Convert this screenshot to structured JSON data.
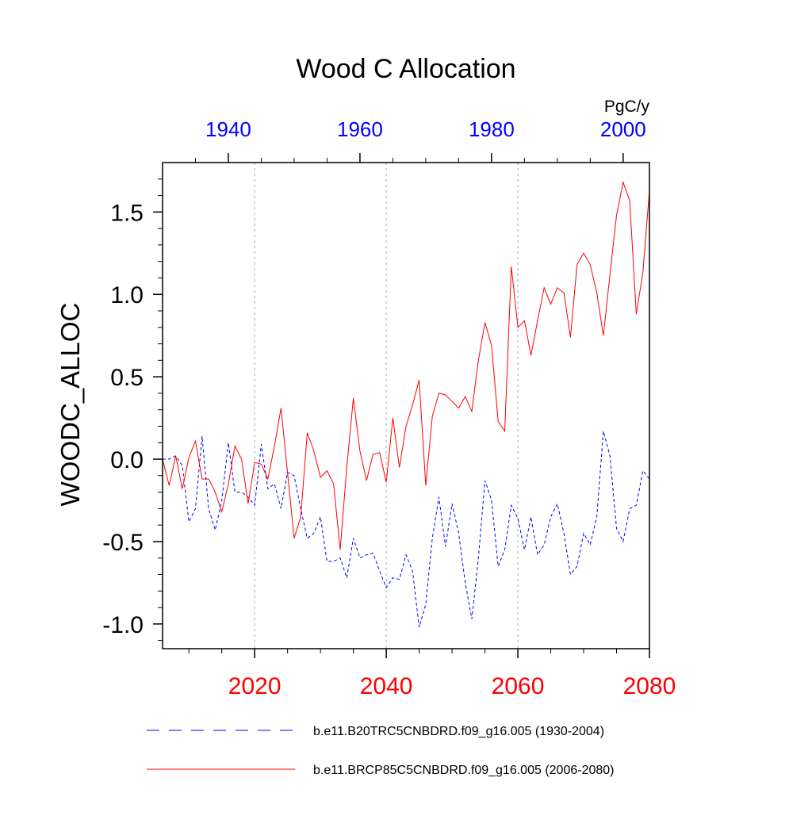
{
  "chart_data": {
    "type": "line",
    "title": "Wood C Allocation",
    "ylabel": "WOODC_ALLOC",
    "units": "PgC/y",
    "ylim": [
      -1.15,
      1.8
    ],
    "yticks": [
      -1.0,
      -0.5,
      0.0,
      0.5,
      1.0,
      1.5
    ],
    "ytick_labels": [
      "-1.0",
      "-0.5",
      "0.0",
      "0.5",
      "1.0",
      "1.5"
    ],
    "bottom_axis": {
      "range": [
        2006,
        2080
      ],
      "ticks": [
        2020,
        2040,
        2060,
        2080
      ],
      "tick_labels": [
        "2020",
        "2040",
        "2060",
        "2080"
      ],
      "color": "#ff0000"
    },
    "top_axis": {
      "range": [
        1930,
        2004
      ],
      "ticks": [
        1940,
        1960,
        1980,
        2000
      ],
      "tick_labels": [
        "1940",
        "1960",
        "1980",
        "2000"
      ],
      "color": "#0000ff"
    },
    "grid": "vertical dotted at bottom-axis ticks",
    "series": [
      {
        "name": "b.e11.B20TRC5CNBDRD.f09_g16.005 (1930-2004)",
        "axis": "top",
        "color": "#0000ff",
        "dash": "dashed",
        "x": [
          1930,
          1931,
          1932,
          1933,
          1934,
          1935,
          1936,
          1937,
          1938,
          1939,
          1940,
          1941,
          1942,
          1943,
          1944,
          1945,
          1946,
          1947,
          1948,
          1949,
          1950,
          1951,
          1952,
          1953,
          1954,
          1955,
          1956,
          1957,
          1958,
          1959,
          1960,
          1961,
          1962,
          1963,
          1964,
          1965,
          1966,
          1967,
          1968,
          1969,
          1970,
          1971,
          1972,
          1973,
          1974,
          1975,
          1976,
          1977,
          1978,
          1979,
          1980,
          1981,
          1982,
          1983,
          1984,
          1985,
          1986,
          1987,
          1988,
          1989,
          1990,
          1991,
          1992,
          1993,
          1994,
          1995,
          1996,
          1997,
          1998,
          1999,
          2000,
          2001,
          2002,
          2003,
          2004
        ],
        "y": [
          0.0,
          0.0,
          0.02,
          -0.04,
          -0.38,
          -0.3,
          0.14,
          -0.3,
          -0.43,
          -0.25,
          0.1,
          -0.2,
          -0.2,
          -0.23,
          -0.28,
          0.09,
          -0.18,
          -0.15,
          -0.3,
          -0.08,
          -0.1,
          -0.3,
          -0.48,
          -0.45,
          -0.35,
          -0.62,
          -0.62,
          -0.6,
          -0.72,
          -0.48,
          -0.6,
          -0.58,
          -0.57,
          -0.68,
          -0.78,
          -0.72,
          -0.73,
          -0.58,
          -0.68,
          -1.02,
          -0.88,
          -0.48,
          -0.23,
          -0.53,
          -0.27,
          -0.45,
          -0.75,
          -0.97,
          -0.6,
          -0.13,
          -0.25,
          -0.65,
          -0.55,
          -0.28,
          -0.36,
          -0.55,
          -0.35,
          -0.58,
          -0.52,
          -0.35,
          -0.27,
          -0.45,
          -0.7,
          -0.65,
          -0.45,
          -0.52,
          -0.35,
          0.17,
          0.02,
          -0.42,
          -0.5,
          -0.3,
          -0.28,
          -0.07,
          -0.12
        ]
      },
      {
        "name": "b.e11.BRCP85C5CNBDRD.f09_g16.005 (2006-2080)",
        "axis": "bottom",
        "color": "#ff0000",
        "dash": "solid",
        "x": [
          2006,
          2007,
          2008,
          2009,
          2010,
          2011,
          2012,
          2013,
          2014,
          2015,
          2016,
          2017,
          2018,
          2019,
          2020,
          2021,
          2022,
          2023,
          2024,
          2025,
          2026,
          2027,
          2028,
          2029,
          2030,
          2031,
          2032,
          2033,
          2034,
          2035,
          2036,
          2037,
          2038,
          2039,
          2040,
          2041,
          2042,
          2043,
          2044,
          2045,
          2046,
          2047,
          2048,
          2049,
          2050,
          2051,
          2052,
          2053,
          2054,
          2055,
          2056,
          2057,
          2058,
          2059,
          2060,
          2061,
          2062,
          2063,
          2064,
          2065,
          2066,
          2067,
          2068,
          2069,
          2070,
          2071,
          2072,
          2073,
          2074,
          2075,
          2076,
          2077,
          2078,
          2079,
          2080
        ],
        "y": [
          0.0,
          -0.16,
          0.02,
          -0.18,
          0.01,
          0.11,
          -0.12,
          -0.12,
          -0.2,
          -0.32,
          -0.15,
          0.08,
          0.0,
          -0.27,
          -0.02,
          -0.03,
          -0.12,
          0.08,
          0.31,
          -0.08,
          -0.48,
          -0.35,
          0.16,
          0.05,
          -0.11,
          -0.07,
          -0.15,
          -0.55,
          -0.05,
          0.37,
          0.05,
          -0.13,
          0.03,
          0.04,
          -0.14,
          0.25,
          -0.05,
          0.2,
          0.33,
          0.48,
          -0.16,
          0.26,
          0.4,
          0.39,
          0.35,
          0.31,
          0.38,
          0.29,
          0.6,
          0.83,
          0.69,
          0.23,
          0.17,
          1.17,
          0.8,
          0.84,
          0.63,
          0.84,
          1.04,
          0.94,
          1.04,
          1.01,
          0.74,
          1.18,
          1.25,
          1.18,
          1.01,
          0.75,
          1.12,
          1.48,
          1.68,
          1.57,
          0.88,
          1.13,
          1.63
        ]
      }
    ]
  }
}
